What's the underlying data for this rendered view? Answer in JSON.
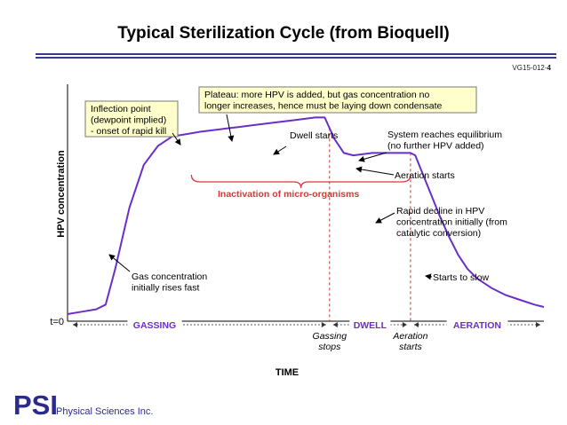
{
  "slide": {
    "title": "Typical Sterilization Cycle (from Bioquell)",
    "slide_id": "VG15-012-",
    "slide_num": "4",
    "logo_text": "PSI",
    "company": "Physical Sciences Inc."
  },
  "chart_data": {
    "type": "line",
    "title": "Typical Sterilization Cycle (from Bioquell)",
    "xlabel": "TIME",
    "ylabel": "HPV concentration",
    "origin_label": "t=0",
    "grid": false,
    "xlim": [
      0,
      100
    ],
    "ylim": [
      0,
      100
    ],
    "series": [
      {
        "color": "#6b2fc9",
        "x": [
          0,
          3,
          6,
          8,
          10,
          13,
          16,
          19,
          22,
          25,
          28,
          32,
          36,
          40,
          44,
          48,
          52,
          54,
          56,
          58,
          60,
          64,
          68,
          72,
          73,
          74,
          76,
          78,
          80,
          82,
          84,
          86,
          89,
          92,
          95,
          98,
          100
        ],
        "y": [
          3,
          4,
          5,
          7,
          22,
          48,
          66,
          74,
          78,
          79,
          80,
          81,
          82,
          83,
          84,
          85,
          86,
          86,
          77,
          71,
          70,
          71,
          71,
          71,
          70,
          65,
          55,
          45,
          36,
          28,
          22,
          18,
          14,
          11,
          9,
          7,
          6
        ]
      }
    ],
    "phases": [
      {
        "label": "GASSING",
        "x_start": 0,
        "x_end": 55
      },
      {
        "label": "DWELL",
        "x_start": 55,
        "x_end": 72
      },
      {
        "label": "AERATION",
        "x_start": 72,
        "x_end": 100
      }
    ],
    "phase_markers": [
      {
        "label_lines": [
          "Gassing",
          "stops"
        ],
        "x": 55
      },
      {
        "label_lines": [
          "Aeration",
          "starts"
        ],
        "x": 72
      }
    ],
    "brace": {
      "label": "Inactivation of micro-organisms",
      "x_start": 26,
      "x_end": 72
    },
    "annotations": [
      {
        "id": "inflection",
        "lines": [
          "Inflection point",
          "(dewpoint implied)",
          "- onset of rapid kill"
        ],
        "boxed": true
      },
      {
        "id": "plateau",
        "lines": [
          "Plateau: more HPV is added, but gas concentration no",
          "longer increases, hence must be laying down condensate"
        ],
        "boxed": true
      },
      {
        "id": "dwell",
        "lines": [
          "Dwell starts"
        ],
        "boxed": false
      },
      {
        "id": "equilibrium",
        "lines": [
          "System reaches equilibrium",
          "(no further HPV added)"
        ],
        "boxed": false
      },
      {
        "id": "aeration",
        "lines": [
          "Aeration starts"
        ],
        "boxed": false
      },
      {
        "id": "decline",
        "lines": [
          "Rapid decline in HPV",
          "concentration initially (from",
          "catalytic conversion)"
        ],
        "boxed": false
      },
      {
        "id": "slow",
        "lines": [
          "Starts to slow"
        ],
        "boxed": false
      },
      {
        "id": "gas",
        "lines": [
          "Gas concentration",
          "initially rises fast"
        ],
        "boxed": false
      }
    ],
    "colors": {
      "curve": "#6b2fc9",
      "phase_text": "#6b2fc9",
      "brace": "#e0353a",
      "brace_text": "#e0353a",
      "marker": "#c0392b",
      "callout_fill": "#ffffcc",
      "callout_border": "#777777",
      "brand": "#2b2b8c"
    }
  }
}
